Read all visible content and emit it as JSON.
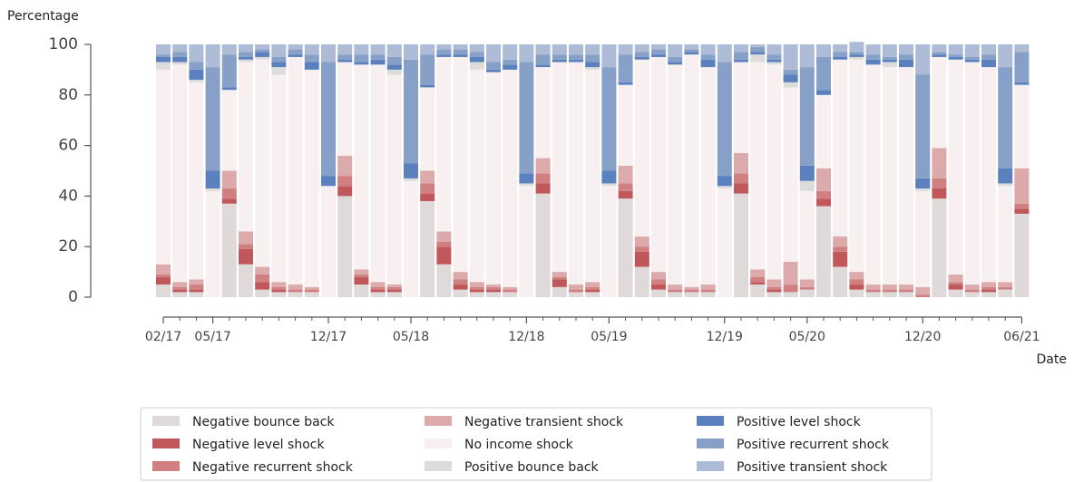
{
  "chart_data": {
    "type": "stacked_bar",
    "y_label": "Percentage",
    "x_label": "Date",
    "categories": [
      "02/17",
      null,
      null,
      "05/17",
      null,
      null,
      null,
      null,
      null,
      null,
      "12/17",
      null,
      null,
      null,
      null,
      "05/18",
      null,
      null,
      null,
      null,
      null,
      null,
      "12/18",
      null,
      null,
      null,
      null,
      "05/19",
      null,
      null,
      null,
      null,
      null,
      null,
      "12/19",
      null,
      null,
      null,
      null,
      "05/20",
      null,
      null,
      null,
      null,
      null,
      null,
      "12/20",
      null,
      null,
      null,
      null,
      null,
      "06/21"
    ],
    "ylim": [
      0,
      100
    ],
    "yticks": [
      0,
      20,
      40,
      60,
      80,
      100
    ],
    "series": [
      {
        "name": "Negative bounce back",
        "color": "#e0d9d9",
        "values": [
          5,
          2,
          2,
          0,
          37,
          13,
          3,
          2,
          2,
          2,
          0,
          40,
          5,
          2,
          2,
          0,
          38,
          13,
          3,
          2,
          2,
          2,
          0,
          41,
          4,
          2,
          2,
          0,
          39,
          12,
          3,
          2,
          2,
          2,
          0,
          41,
          5,
          2,
          2,
          3,
          36,
          12,
          3,
          2,
          2,
          2,
          0,
          39,
          3,
          2,
          2,
          3,
          33
        ]
      },
      {
        "name": "Negative level shock",
        "color": "#c0575a",
        "values": [
          3,
          1,
          1,
          0,
          2,
          6,
          3,
          1,
          0,
          0,
          0,
          4,
          3,
          1,
          1,
          0,
          3,
          7,
          2,
          1,
          1,
          0,
          0,
          4,
          3,
          0,
          1,
          0,
          3,
          6,
          2,
          0,
          0,
          0,
          0,
          4,
          1,
          1,
          0,
          0,
          3,
          6,
          2,
          0,
          0,
          0,
          0,
          4,
          2,
          0,
          1,
          0,
          2
        ]
      },
      {
        "name": "Negative recurrent shock",
        "color": "#d08080",
        "values": [
          1,
          1,
          2,
          0,
          4,
          2,
          3,
          1,
          1,
          1,
          0,
          4,
          1,
          1,
          1,
          0,
          4,
          2,
          2,
          1,
          1,
          1,
          0,
          4,
          1,
          1,
          1,
          0,
          3,
          2,
          2,
          1,
          1,
          1,
          0,
          4,
          2,
          1,
          3,
          1,
          3,
          2,
          2,
          1,
          1,
          1,
          1,
          4,
          1,
          1,
          1,
          1,
          2
        ]
      },
      {
        "name": "Negative transient shock",
        "color": "#dcaaaa",
        "values": [
          4,
          2,
          2,
          0,
          7,
          5,
          3,
          2,
          2,
          1,
          0,
          8,
          2,
          2,
          1,
          0,
          5,
          4,
          3,
          2,
          1,
          1,
          0,
          6,
          2,
          2,
          2,
          0,
          7,
          4,
          3,
          2,
          1,
          2,
          0,
          8,
          3,
          3,
          9,
          3,
          9,
          4,
          3,
          2,
          2,
          2,
          3,
          12,
          3,
          2,
          2,
          2,
          14
        ]
      },
      {
        "name": "No income shock",
        "color": "#f8f0f0",
        "values": [
          77,
          86,
          78,
          42,
          32,
          67,
          82,
          82,
          90,
          86,
          44,
          37,
          81,
          86,
          83,
          46,
          33,
          69,
          85,
          84,
          84,
          86,
          44,
          36,
          83,
          88,
          84,
          44,
          32,
          70,
          85,
          87,
          92,
          86,
          43,
          36,
          82,
          85,
          69,
          35,
          29,
          70,
          84,
          87,
          86,
          86,
          38,
          36,
          85,
          88,
          85,
          38,
          33
        ]
      },
      {
        "name": "Positive bounce back",
        "color": "#dcdcdc",
        "values": [
          3,
          1,
          1,
          1,
          0,
          1,
          1,
          3,
          0,
          0,
          0,
          0,
          0,
          0,
          2,
          1,
          0,
          0,
          0,
          3,
          0,
          0,
          1,
          0,
          0,
          0,
          1,
          1,
          0,
          0,
          0,
          0,
          0,
          0,
          1,
          0,
          3,
          1,
          2,
          4,
          0,
          0,
          1,
          0,
          2,
          0,
          1,
          0,
          0,
          0,
          0,
          1,
          0
        ]
      },
      {
        "name": "Positive level shock",
        "color": "#5a80bd",
        "values": [
          2,
          2,
          4,
          7,
          1,
          1,
          2,
          2,
          1,
          3,
          4,
          1,
          1,
          2,
          2,
          6,
          1,
          1,
          1,
          2,
          1,
          2,
          4,
          1,
          1,
          1,
          2,
          5,
          1,
          1,
          1,
          1,
          1,
          3,
          4,
          1,
          1,
          1,
          3,
          6,
          2,
          1,
          1,
          2,
          1,
          3,
          4,
          1,
          1,
          1,
          3,
          6,
          1
        ]
      },
      {
        "name": "Positive recurrent shock",
        "color": "#87a0c7",
        "values": [
          1,
          2,
          3,
          41,
          13,
          2,
          1,
          2,
          2,
          3,
          45,
          2,
          3,
          2,
          3,
          41,
          12,
          2,
          2,
          2,
          3,
          2,
          44,
          4,
          2,
          2,
          3,
          41,
          11,
          2,
          2,
          2,
          1,
          2,
          45,
          3,
          2,
          2,
          2,
          39,
          13,
          2,
          1,
          2,
          1,
          2,
          41,
          1,
          1,
          1,
          2,
          40,
          12
        ]
      },
      {
        "name": "Positive transient shock",
        "color": "#adbbd6",
        "values": [
          4,
          3,
          7,
          9,
          4,
          3,
          2,
          5,
          2,
          4,
          7,
          4,
          4,
          4,
          5,
          6,
          4,
          2,
          2,
          3,
          7,
          6,
          7,
          4,
          4,
          4,
          4,
          9,
          4,
          3,
          2,
          5,
          2,
          4,
          7,
          3,
          1,
          4,
          10,
          9,
          5,
          3,
          4,
          4,
          5,
          4,
          12,
          3,
          4,
          5,
          4,
          9,
          3
        ]
      }
    ]
  }
}
